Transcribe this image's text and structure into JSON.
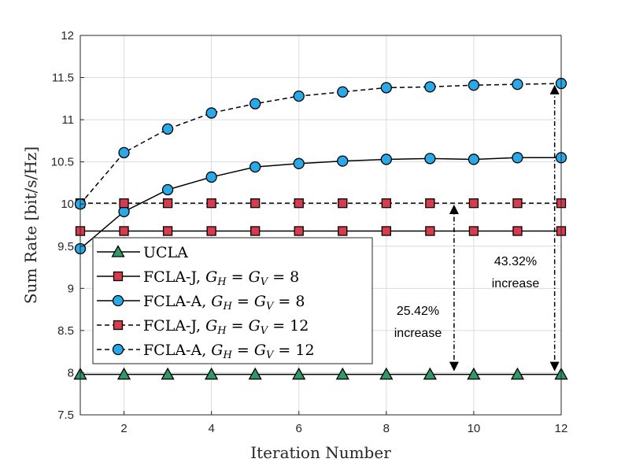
{
  "chart_data": {
    "type": "line",
    "title": "",
    "xlabel": "Iteration Number",
    "ylabel": "Sum Rate [bit/s/Hz]",
    "xlim": [
      1,
      12
    ],
    "ylim": [
      7.5,
      12
    ],
    "xticks": [
      2,
      4,
      6,
      8,
      10,
      12
    ],
    "yticks": [
      7.5,
      8,
      8.5,
      9,
      9.5,
      10,
      10.5,
      11,
      11.5,
      12
    ],
    "grid": true,
    "legend_position": "center-left",
    "x": [
      1,
      2,
      3,
      4,
      5,
      6,
      7,
      8,
      9,
      10,
      11,
      12
    ],
    "series": [
      {
        "name": "UCLA",
        "legend": {
          "text": "UCLA"
        },
        "line": "solid",
        "marker": "triangle",
        "color": "#2e9a6a",
        "values": [
          7.98,
          7.98,
          7.98,
          7.98,
          7.98,
          7.98,
          7.98,
          7.98,
          7.98,
          7.98,
          7.98,
          7.98
        ]
      },
      {
        "name": "FCLA-J, G_H = G_V = 8",
        "legend": {
          "prefix": "FCLA-J, ",
          "math": "G",
          "sub1": "H",
          "mid": " = ",
          "math2": "G",
          "sub2": "V",
          "suffix": " = 8"
        },
        "line": "solid",
        "marker": "square",
        "color": "#d83a4e",
        "values": [
          9.68,
          9.68,
          9.68,
          9.68,
          9.68,
          9.68,
          9.68,
          9.68,
          9.68,
          9.68,
          9.68,
          9.68
        ]
      },
      {
        "name": "FCLA-A, G_H = G_V = 8",
        "legend": {
          "prefix": "FCLA-A, ",
          "math": "G",
          "sub1": "H",
          "mid": " = ",
          "math2": "G",
          "sub2": "V",
          "suffix": " = 8"
        },
        "line": "solid",
        "marker": "circle",
        "color": "#2aa9e8",
        "values": [
          9.47,
          9.91,
          10.17,
          10.32,
          10.44,
          10.48,
          10.51,
          10.53,
          10.54,
          10.53,
          10.55,
          10.55
        ]
      },
      {
        "name": "FCLA-J, G_H = G_V = 12",
        "legend": {
          "prefix": "FCLA-J, ",
          "math": "G",
          "sub1": "H",
          "mid": " = ",
          "math2": "G",
          "sub2": "V",
          "suffix": " = 12"
        },
        "line": "dashed",
        "marker": "square",
        "color": "#d83a4e",
        "values": [
          10.01,
          10.01,
          10.01,
          10.01,
          10.01,
          10.01,
          10.01,
          10.01,
          10.01,
          10.01,
          10.01,
          10.01
        ]
      },
      {
        "name": "FCLA-A, G_H = G_V = 12",
        "legend": {
          "prefix": "FCLA-A, ",
          "math": "G",
          "sub1": "H",
          "mid": " = ",
          "math2": "G",
          "sub2": "V",
          "suffix": " = 12"
        },
        "line": "dashed",
        "marker": "circle",
        "color": "#2aa9e8",
        "values": [
          10.0,
          10.61,
          10.89,
          11.08,
          11.19,
          11.28,
          11.33,
          11.38,
          11.39,
          11.41,
          11.42,
          11.43
        ]
      }
    ],
    "annotations": [
      {
        "line1": "25.42%",
        "line2": "increase",
        "arrow_x": 9.55,
        "from": 8.0,
        "to": 10.01
      },
      {
        "line1": "43.32%",
        "line2": "increase",
        "arrow_x": 11.85,
        "from": 8.0,
        "to": 11.43
      }
    ]
  }
}
